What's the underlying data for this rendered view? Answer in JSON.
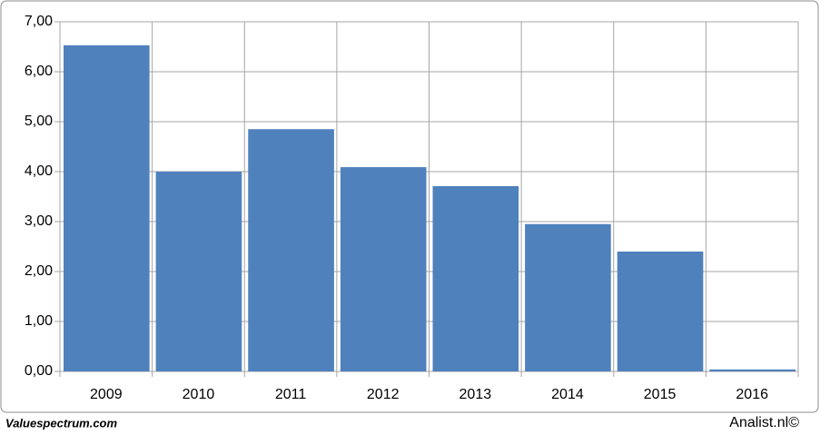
{
  "chart_data": {
    "type": "bar",
    "categories": [
      "2009",
      "2010",
      "2011",
      "2012",
      "2013",
      "2014",
      "2015",
      "2016"
    ],
    "values": [
      6.53,
      4.0,
      4.85,
      4.09,
      3.71,
      2.95,
      2.4,
      0.04
    ],
    "color": "#4f81bd",
    "ylim": [
      0,
      7
    ],
    "yticks": [
      {
        "value": 0,
        "label": "0,00"
      },
      {
        "value": 1,
        "label": "1,00"
      },
      {
        "value": 2,
        "label": "2,00"
      },
      {
        "value": 3,
        "label": "3,00"
      },
      {
        "value": 4,
        "label": "4,00"
      },
      {
        "value": 5,
        "label": "5,00"
      },
      {
        "value": 6,
        "label": "6,00"
      },
      {
        "value": 7,
        "label": "7,00"
      }
    ],
    "grid": true
  },
  "footer": {
    "left": "Valuespectrum.com",
    "right": "Analist.nl©"
  }
}
